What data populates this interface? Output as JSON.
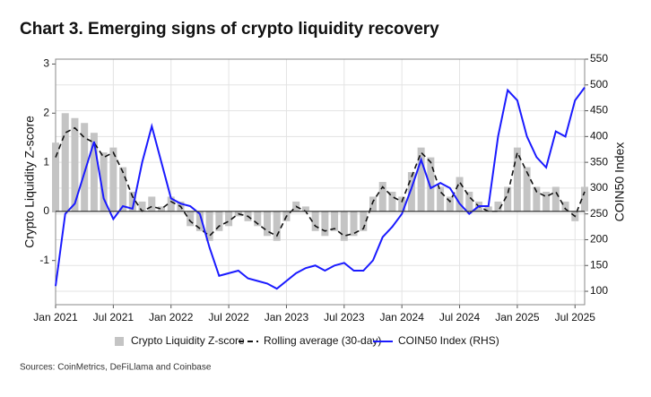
{
  "chart_data": {
    "type": "combo",
    "title": "Chart 3. Emerging signs of crypto liquidity recovery",
    "ylabel": "Crypto Liquidity Z-score",
    "y2label": "COIN50 Index",
    "source": "Sources: CoinMetrics, DeFiLlama and Coinbase",
    "x": [
      "Jan 2021",
      "Feb 2021",
      "Mar 2021",
      "Apr 2021",
      "May 2021",
      "Jun 2021",
      "Jul 2021",
      "Aug 2021",
      "Sep 2021",
      "Oct 2021",
      "Nov 2021",
      "Dec 2021",
      "Jan 2022",
      "Feb 2022",
      "Mar 2022",
      "Apr 2022",
      "May 2022",
      "Jun 2022",
      "Jul 2022",
      "Aug 2022",
      "Sep 2022",
      "Oct 2022",
      "Nov 2022",
      "Dec 2022",
      "Jan 2023",
      "Feb 2023",
      "Mar 2023",
      "Apr 2023",
      "May 2023",
      "Jun 2023",
      "Jul 2023",
      "Aug 2023",
      "Sep 2023",
      "Oct 2023",
      "Nov 2023",
      "Dec 2023",
      "Jan 2024",
      "Feb 2024",
      "Mar 2024",
      "Apr 2024",
      "May 2024",
      "Jun 2024",
      "Jul 2024",
      "Aug 2024",
      "Sep 2024",
      "Oct 2024",
      "Nov 2024",
      "Dec 2024",
      "Jan 2025",
      "Feb 2025",
      "Mar 2025",
      "Apr 2025",
      "May 2025",
      "Jun 2025",
      "Jul 2025",
      "Aug 2025"
    ],
    "xticks": [
      "Jan 2021",
      "Jul 2021",
      "Jan 2022",
      "Jul 2022",
      "Jan 2023",
      "Jul 2023",
      "Jan 2024",
      "Jul 2024",
      "Jan 2025",
      "Jul 2025"
    ],
    "ylim": [
      -1.9,
      3.1
    ],
    "yticks": [
      -1,
      0,
      1,
      2,
      3
    ],
    "y2lim": [
      74,
      550
    ],
    "y2ticks": [
      100,
      150,
      200,
      250,
      300,
      350,
      400,
      450,
      500,
      550
    ],
    "grid": true,
    "series": [
      {
        "name": "Crypto Liquidity Z-score",
        "color": "#c4c4c4",
        "mark": "bar",
        "values": [
          1.4,
          2.0,
          1.9,
          1.8,
          1.6,
          1.2,
          1.3,
          0.9,
          0.4,
          0.2,
          0.3,
          0.1,
          0.3,
          0.2,
          -0.3,
          -0.4,
          -0.6,
          -0.4,
          -0.3,
          -0.1,
          -0.2,
          -0.3,
          -0.5,
          -0.6,
          -0.2,
          0.2,
          0.1,
          -0.4,
          -0.5,
          -0.4,
          -0.6,
          -0.5,
          -0.4,
          0.3,
          0.6,
          0.4,
          0.3,
          0.8,
          1.3,
          1.1,
          0.5,
          0.3,
          0.7,
          0.4,
          0.2,
          0.1,
          0.2,
          0.5,
          1.3,
          0.9,
          0.5,
          0.4,
          0.5,
          0.2,
          -0.2,
          0.5
        ]
      },
      {
        "name": "Rolling average (30-day)",
        "color": "#111111",
        "mark": "dashed",
        "values": [
          1.1,
          1.6,
          1.7,
          1.5,
          1.4,
          1.1,
          1.2,
          0.8,
          0.3,
          0.0,
          0.1,
          0.05,
          0.2,
          0.1,
          -0.2,
          -0.35,
          -0.5,
          -0.3,
          -0.2,
          -0.05,
          -0.1,
          -0.25,
          -0.4,
          -0.5,
          -0.1,
          0.1,
          0.0,
          -0.3,
          -0.4,
          -0.35,
          -0.5,
          -0.45,
          -0.35,
          0.2,
          0.5,
          0.3,
          0.2,
          0.7,
          1.2,
          1.0,
          0.4,
          0.2,
          0.6,
          0.3,
          0.1,
          0.0,
          0.0,
          0.35,
          1.2,
          0.8,
          0.4,
          0.3,
          0.4,
          0.05,
          -0.1,
          0.4
        ]
      },
      {
        "name": "COIN50 Index (RHS)",
        "color": "#1a1aff",
        "mark": "line",
        "axis": "y2",
        "values": [
          110,
          250,
          270,
          330,
          390,
          280,
          240,
          265,
          260,
          350,
          420,
          350,
          280,
          270,
          265,
          250,
          185,
          130,
          135,
          140,
          125,
          120,
          115,
          105,
          120,
          135,
          145,
          150,
          140,
          150,
          155,
          140,
          140,
          160,
          205,
          225,
          250,
          300,
          355,
          300,
          310,
          300,
          270,
          250,
          265,
          265,
          400,
          490,
          470,
          400,
          360,
          340,
          410,
          400,
          470,
          495
        ]
      }
    ]
  }
}
